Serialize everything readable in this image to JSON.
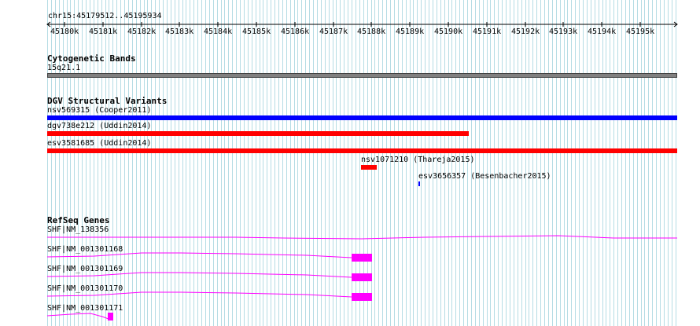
{
  "ruler": {
    "location": "chr15:45179512..45195934",
    "ticks": [
      "45180k",
      "45181k",
      "45182k",
      "45183k",
      "45184k",
      "45185k",
      "45186k",
      "45187k",
      "45188k",
      "45189k",
      "45190k",
      "45191k",
      "45192k",
      "45193k",
      "45194k",
      "45195k"
    ]
  },
  "tracks": {
    "cytobands": {
      "title": "Cytogenetic Bands",
      "band_label": "15q21.1",
      "color": "#808080"
    },
    "dgv": {
      "title": "DGV Structural Variants",
      "features": [
        {
          "label": "nsv569315 (Cooper2011)",
          "color": "#0000ff"
        },
        {
          "label": "dgv738e212 (Uddin2014)",
          "color": "#ff0000"
        },
        {
          "label": "esv3581685 (Uddin2014)",
          "color": "#ff0000"
        },
        {
          "label": "nsv1071210 (Thareja2015)",
          "color": "#ff0000"
        },
        {
          "label": "esv3656357 (Besenbacher2015)",
          "color": "#0000ff"
        }
      ]
    },
    "refseq": {
      "title": "RefSeq Genes",
      "color": "#ff00ff",
      "genes": [
        {
          "label": "SHF|NM_138356"
        },
        {
          "label": "SHF|NM_001301168"
        },
        {
          "label": "SHF|NM_001301169"
        },
        {
          "label": "SHF|NM_001301170"
        },
        {
          "label": "SHF|NM_001301171"
        }
      ]
    }
  }
}
